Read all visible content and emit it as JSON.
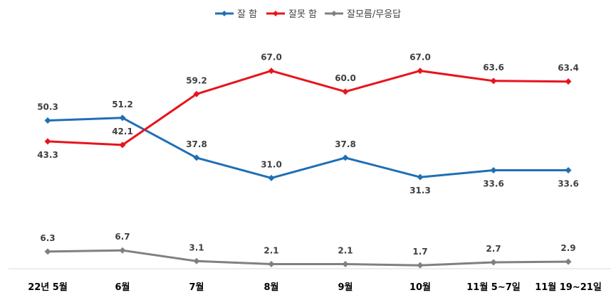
{
  "chart_data": {
    "type": "line",
    "categories": [
      "22년 5월",
      "6월",
      "7월",
      "8월",
      "9월",
      "10월",
      "11월 5~7일",
      "11월 19~21일"
    ],
    "series": [
      {
        "name": "잘 함",
        "color": "#1f6fb5",
        "values": [
          50.3,
          51.2,
          37.8,
          31.0,
          37.8,
          31.3,
          33.6,
          33.6
        ],
        "labels": [
          "50.3",
          "51.2",
          "37.8",
          "31.0",
          "37.8",
          "31.3",
          "33.6",
          "33.6"
        ],
        "label_pos": [
          "above",
          "above",
          "above",
          "above",
          "above",
          "below",
          "below",
          "below"
        ]
      },
      {
        "name": "잘못 함",
        "color": "#e8141b",
        "values": [
          43.3,
          42.1,
          59.2,
          67.0,
          60.0,
          67.0,
          63.6,
          63.4
        ],
        "labels": [
          "43.3",
          "42.1",
          "59.2",
          "67.0",
          "60.0",
          "67.0",
          "63.6",
          "63.4"
        ],
        "label_pos": [
          "below",
          "above",
          "above",
          "above",
          "above",
          "above",
          "above",
          "above"
        ]
      },
      {
        "name": "잘모름/무응답",
        "color": "#808080",
        "values": [
          6.3,
          6.7,
          3.1,
          2.1,
          2.1,
          1.7,
          2.7,
          2.9
        ],
        "labels": [
          "6.3",
          "6.7",
          "3.1",
          "2.1",
          "2.1",
          "1.7",
          "2.7",
          "2.9"
        ],
        "label_pos": [
          "above",
          "above",
          "above",
          "above",
          "above",
          "above",
          "above",
          "above"
        ]
      }
    ],
    "legend_position": "top-center",
    "grid": false
  }
}
